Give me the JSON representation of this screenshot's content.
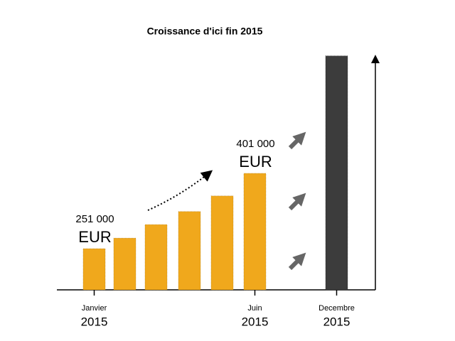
{
  "chart_data": {
    "type": "bar",
    "title": "Croissance d'ici fin 2015",
    "categories": [
      "Janvier",
      null,
      null,
      null,
      null,
      "Juin",
      "Decembre"
    ],
    "category_years": [
      "2015",
      null,
      null,
      null,
      null,
      "2015",
      "2015"
    ],
    "values": [
      251000,
      272000,
      299000,
      325000,
      356000,
      401000,
      635000
    ],
    "value_labels": [
      "251 000",
      null,
      null,
      null,
      null,
      "401 000",
      null
    ],
    "unit": "EUR",
    "colors": [
      "#f0a81c",
      "#f0a81c",
      "#f0a81c",
      "#f0a81c",
      "#f0a81c",
      "#f0a81c",
      "#3c3c3c"
    ],
    "ylim": [
      169000,
      636000
    ]
  }
}
